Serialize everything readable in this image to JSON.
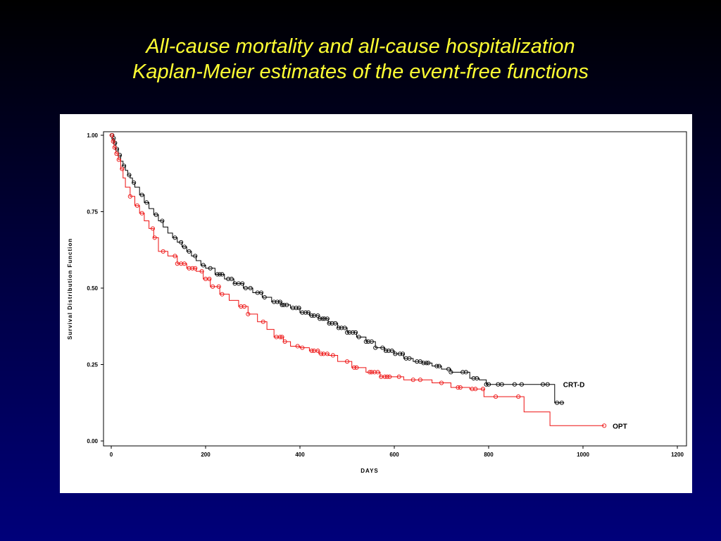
{
  "slide": {
    "title_line1": "All-cause mortality and all-cause hospitalization",
    "title_line2": "Kaplan-Meier estimates of the event-free functions"
  },
  "colors": {
    "background_top": "#000000",
    "background_bottom": "#00007a",
    "title": "#ffff33",
    "series_crt_d": "#000000",
    "series_opt": "#ee1111"
  },
  "chart_data": {
    "type": "line",
    "subtype": "kaplan-meier-step",
    "title": "",
    "xlabel": "DAYS",
    "ylabel": "Survival Distribution Function",
    "xlim": [
      0,
      1200
    ],
    "ylim": [
      0,
      1
    ],
    "x_ticks": [
      0,
      200,
      400,
      600,
      800,
      1000,
      1200
    ],
    "y_ticks": [
      0.0,
      0.25,
      0.5,
      0.75,
      1.0
    ],
    "x_tick_labels": [
      "0",
      "200",
      "400",
      "600",
      "800",
      "1000",
      "1200"
    ],
    "y_tick_labels": [
      "0.00",
      "0.25",
      "0.50",
      "0.75",
      "1.00"
    ],
    "grid": false,
    "legend": "inline labels at line ends",
    "series": [
      {
        "name": "CRT-D",
        "color": "#000000",
        "points": [
          [
            0,
            1.0
          ],
          [
            3,
            0.99
          ],
          [
            6,
            0.975
          ],
          [
            10,
            0.955
          ],
          [
            15,
            0.935
          ],
          [
            20,
            0.915
          ],
          [
            25,
            0.9
          ],
          [
            30,
            0.885
          ],
          [
            35,
            0.87
          ],
          [
            40,
            0.86
          ],
          [
            45,
            0.845
          ],
          [
            50,
            0.83
          ],
          [
            60,
            0.805
          ],
          [
            70,
            0.78
          ],
          [
            80,
            0.76
          ],
          [
            90,
            0.74
          ],
          [
            100,
            0.72
          ],
          [
            110,
            0.7
          ],
          [
            120,
            0.68
          ],
          [
            130,
            0.665
          ],
          [
            140,
            0.65
          ],
          [
            150,
            0.635
          ],
          [
            160,
            0.62
          ],
          [
            170,
            0.605
          ],
          [
            180,
            0.59
          ],
          [
            190,
            0.575
          ],
          [
            200,
            0.565
          ],
          [
            220,
            0.545
          ],
          [
            240,
            0.53
          ],
          [
            260,
            0.515
          ],
          [
            280,
            0.5
          ],
          [
            300,
            0.485
          ],
          [
            320,
            0.47
          ],
          [
            340,
            0.455
          ],
          [
            360,
            0.445
          ],
          [
            380,
            0.435
          ],
          [
            400,
            0.42
          ],
          [
            420,
            0.41
          ],
          [
            440,
            0.4
          ],
          [
            460,
            0.385
          ],
          [
            480,
            0.37
          ],
          [
            500,
            0.355
          ],
          [
            520,
            0.34
          ],
          [
            540,
            0.325
          ],
          [
            560,
            0.305
          ],
          [
            580,
            0.295
          ],
          [
            600,
            0.285
          ],
          [
            620,
            0.27
          ],
          [
            640,
            0.26
          ],
          [
            660,
            0.255
          ],
          [
            680,
            0.245
          ],
          [
            700,
            0.235
          ],
          [
            720,
            0.225
          ],
          [
            760,
            0.205
          ],
          [
            780,
            0.2
          ],
          [
            795,
            0.185
          ],
          [
            860,
            0.185
          ],
          [
            940,
            0.185
          ],
          [
            940,
            0.125
          ],
          [
            960,
            0.125
          ]
        ],
        "censor_x": [
          2,
          5,
          8,
          12,
          18,
          27,
          38,
          48,
          65,
          75,
          95,
          108,
          135,
          148,
          155,
          165,
          178,
          195,
          210,
          225,
          230,
          235,
          248,
          255,
          262,
          270,
          278,
          285,
          295,
          310,
          318,
          325,
          345,
          352,
          358,
          362,
          366,
          372,
          385,
          392,
          398,
          405,
          412,
          418,
          425,
          430,
          438,
          442,
          448,
          452,
          458,
          462,
          468,
          475,
          482,
          488,
          495,
          500,
          505,
          512,
          518,
          525,
          540,
          545,
          552,
          560,
          575,
          582,
          588,
          595,
          602,
          612,
          618,
          625,
          632,
          648,
          655,
          662,
          668,
          672,
          690,
          695,
          715,
          720,
          745,
          752,
          768,
          775,
          795,
          800,
          820,
          828,
          855,
          870,
          915,
          925,
          945,
          955
        ]
      },
      {
        "name": "OPT",
        "color": "#ee1111",
        "points": [
          [
            0,
            1.0
          ],
          [
            3,
            0.98
          ],
          [
            6,
            0.96
          ],
          [
            10,
            0.94
          ],
          [
            15,
            0.92
          ],
          [
            20,
            0.89
          ],
          [
            25,
            0.86
          ],
          [
            30,
            0.83
          ],
          [
            40,
            0.8
          ],
          [
            50,
            0.77
          ],
          [
            60,
            0.745
          ],
          [
            70,
            0.72
          ],
          [
            80,
            0.695
          ],
          [
            90,
            0.665
          ],
          [
            100,
            0.62
          ],
          [
            120,
            0.605
          ],
          [
            140,
            0.58
          ],
          [
            160,
            0.565
          ],
          [
            180,
            0.555
          ],
          [
            195,
            0.53
          ],
          [
            210,
            0.505
          ],
          [
            230,
            0.48
          ],
          [
            250,
            0.46
          ],
          [
            270,
            0.44
          ],
          [
            290,
            0.415
          ],
          [
            310,
            0.39
          ],
          [
            330,
            0.365
          ],
          [
            345,
            0.34
          ],
          [
            365,
            0.325
          ],
          [
            380,
            0.31
          ],
          [
            400,
            0.305
          ],
          [
            420,
            0.295
          ],
          [
            440,
            0.285
          ],
          [
            460,
            0.28
          ],
          [
            480,
            0.26
          ],
          [
            510,
            0.24
          ],
          [
            540,
            0.225
          ],
          [
            570,
            0.21
          ],
          [
            620,
            0.2
          ],
          [
            680,
            0.19
          ],
          [
            720,
            0.175
          ],
          [
            760,
            0.17
          ],
          [
            790,
            0.145
          ],
          [
            870,
            0.145
          ],
          [
            875,
            0.095
          ],
          [
            930,
            0.095
          ],
          [
            930,
            0.05
          ],
          [
            1045,
            0.05
          ]
        ],
        "censor_x": [
          1,
          4,
          7,
          11,
          16,
          23,
          40,
          55,
          65,
          88,
          92,
          110,
          135,
          140,
          148,
          155,
          165,
          172,
          178,
          192,
          200,
          208,
          215,
          228,
          235,
          275,
          282,
          290,
          322,
          350,
          358,
          362,
          368,
          395,
          405,
          425,
          430,
          438,
          445,
          450,
          458,
          470,
          500,
          515,
          520,
          548,
          552,
          558,
          565,
          572,
          580,
          585,
          590,
          610,
          640,
          655,
          700,
          735,
          740,
          765,
          772,
          788,
          815,
          863,
          1045
        ]
      }
    ],
    "series_labels": [
      "CRT-D",
      "OPT"
    ]
  }
}
